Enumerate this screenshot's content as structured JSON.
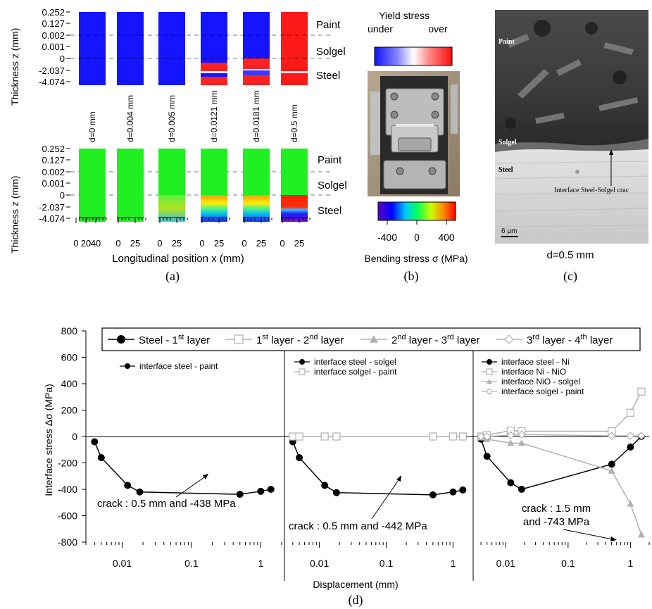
{
  "colors": {
    "yield_under": "#1414ff",
    "yield_over": "#ff1a1a",
    "field_base": "#20f020",
    "series_black": "#000000",
    "series_grey": "#b0b0b0"
  },
  "panel_a": {
    "ylabel": "Thickness z (mm)",
    "ytick_labels": [
      "0.252",
      "0.127",
      "0.002",
      "0.001",
      "0",
      "-2.037",
      "-4.074"
    ],
    "layer_labels": [
      "Paint",
      "Solgel",
      "Steel"
    ],
    "columns": [
      {
        "label": "d=0 mm",
        "yield_state": "under",
        "bending": "uniform"
      },
      {
        "label": "d=0.004 mm",
        "yield_state": "under",
        "bending": "uniform"
      },
      {
        "label": "d=0.005 mm",
        "yield_state": "under",
        "bending": "steel-gradient"
      },
      {
        "label": "d=0.0121 mm",
        "yield_state": "over-in-steel",
        "bending": "steel-gradient"
      },
      {
        "label": "d=0.0181 mm",
        "yield_state": "over-steel",
        "bending": "steel-gradient"
      },
      {
        "label": "d=0.5 mm",
        "yield_state": "over",
        "bending": "steel-strong"
      }
    ],
    "xtick_groups": [
      [
        "0",
        "20",
        "40"
      ],
      [
        "0",
        "25"
      ],
      [
        "0",
        "25"
      ],
      [
        "0",
        "25"
      ],
      [
        "0",
        "25"
      ],
      [
        "0",
        "25"
      ]
    ],
    "xlabel": "Longitudinal position x (mm)",
    "caption": "(a)"
  },
  "panel_b": {
    "yield_title": "Yield stress",
    "yield_under": "under",
    "yield_over": "over",
    "bending_ticks": [
      "-400",
      "0",
      "400"
    ],
    "bending_label": "Bending stress σ (MPa)",
    "caption": "(b)"
  },
  "panel_c": {
    "labels": {
      "paint": "Paint",
      "solgel": "Solgel",
      "steel": "Steel",
      "crack": "Interface Steel-Solgel crac",
      "scale": "6 µm"
    },
    "subcaption": "d=0.5 mm",
    "caption": "(c)"
  },
  "chart_data": {
    "type": "line",
    "ylabel": "Interface stress Δσ (MPa)",
    "xlabel": "Displacement (mm)",
    "x_scale": "log",
    "x_range": [
      0.003,
      2
    ],
    "ylim": [
      -800,
      800
    ],
    "ytick_labels": [
      "800",
      "600",
      "400",
      "200",
      "0",
      "-200",
      "-400",
      "-600",
      "-800"
    ],
    "xtick_labels": [
      "0.01",
      "0.1",
      "1"
    ],
    "legend": {
      "position": "top",
      "entries": [
        {
          "text": "Steel - 1",
          "sup": "st",
          "tail": " layer",
          "marker": "circle",
          "color": "#000000"
        },
        {
          "text": "1",
          "sup": "st",
          "tail": " layer - 2",
          "sup2": "nd",
          "tail2": " layer",
          "marker": "square",
          "color": "#b0b0b0"
        },
        {
          "text": "2",
          "sup": "nd",
          "tail": " layer - 3",
          "sup2": "rd",
          "tail2": " layer",
          "marker": "triangle",
          "color": "#b0b0b0"
        },
        {
          "text": "3",
          "sup": "rd",
          "tail": " layer - 4",
          "sup2": "th",
          "tail2": " layer",
          "marker": "diamond",
          "color": "#b0b0b0"
        }
      ]
    },
    "panels": [
      {
        "legend": [
          "interface steel - paint"
        ],
        "annotation": [
          "crack : 0.5 mm and -438 MPa"
        ],
        "series": [
          {
            "name": "interface steel - paint",
            "marker": "circle",
            "color": "#000000",
            "x": [
              0.004,
              0.005,
              0.012,
              0.018,
              0.5,
              1.0,
              1.4
            ],
            "y": [
              -40,
              -160,
              -370,
              -420,
              -438,
              -415,
              -400
            ]
          }
        ]
      },
      {
        "legend": [
          "interface steel - solgel",
          "interface solgel - paint"
        ],
        "annotation": [
          "crack : 0.5 mm and -442 MPa"
        ],
        "series": [
          {
            "name": "interface steel - solgel",
            "marker": "circle",
            "color": "#000000",
            "x": [
              0.004,
              0.005,
              0.012,
              0.018,
              0.5,
              1.0,
              1.4
            ],
            "y": [
              -40,
              -160,
              -370,
              -425,
              -442,
              -420,
              -405
            ]
          },
          {
            "name": "interface solgel - paint",
            "marker": "square",
            "color": "#b0b0b0",
            "x": [
              0.004,
              0.005,
              0.012,
              0.018,
              0.5,
              1.0,
              1.4
            ],
            "y": [
              0,
              0,
              0,
              0,
              0,
              0,
              0
            ]
          }
        ]
      },
      {
        "legend": [
          "interface steel - Ni",
          "interface Ni - NiO",
          "interface NiO - solgel",
          "interface solgel - paint"
        ],
        "annotation": [
          "crack : 1.5 mm",
          "and -743 MPa"
        ],
        "series": [
          {
            "name": "interface steel - Ni",
            "marker": "circle",
            "color": "#000000",
            "x": [
              0.004,
              0.005,
              0.012,
              0.018,
              0.5,
              1.0,
              1.5
            ],
            "y": [
              -20,
              -150,
              -350,
              -400,
              -210,
              -80,
              0
            ]
          },
          {
            "name": "interface Ni - NiO",
            "marker": "square",
            "color": "#b0b0b0",
            "x": [
              0.004,
              0.005,
              0.012,
              0.018,
              0.5,
              1.0,
              1.5
            ],
            "y": [
              0,
              10,
              45,
              40,
              40,
              180,
              340
            ]
          },
          {
            "name": "interface NiO - solgel",
            "marker": "triangle",
            "color": "#b0b0b0",
            "x": [
              0.004,
              0.005,
              0.012,
              0.018,
              0.5,
              1.0,
              1.5
            ],
            "y": [
              0,
              -20,
              -50,
              -50,
              -260,
              -510,
              -743
            ]
          },
          {
            "name": "interface solgel - paint",
            "marker": "diamond",
            "color": "#b0b0b0",
            "x": [
              0.004,
              0.005,
              0.012,
              0.018,
              0.5,
              1.0,
              1.5
            ],
            "y": [
              0,
              0,
              10,
              15,
              5,
              5,
              5
            ]
          }
        ]
      }
    ],
    "caption": "(d)"
  }
}
